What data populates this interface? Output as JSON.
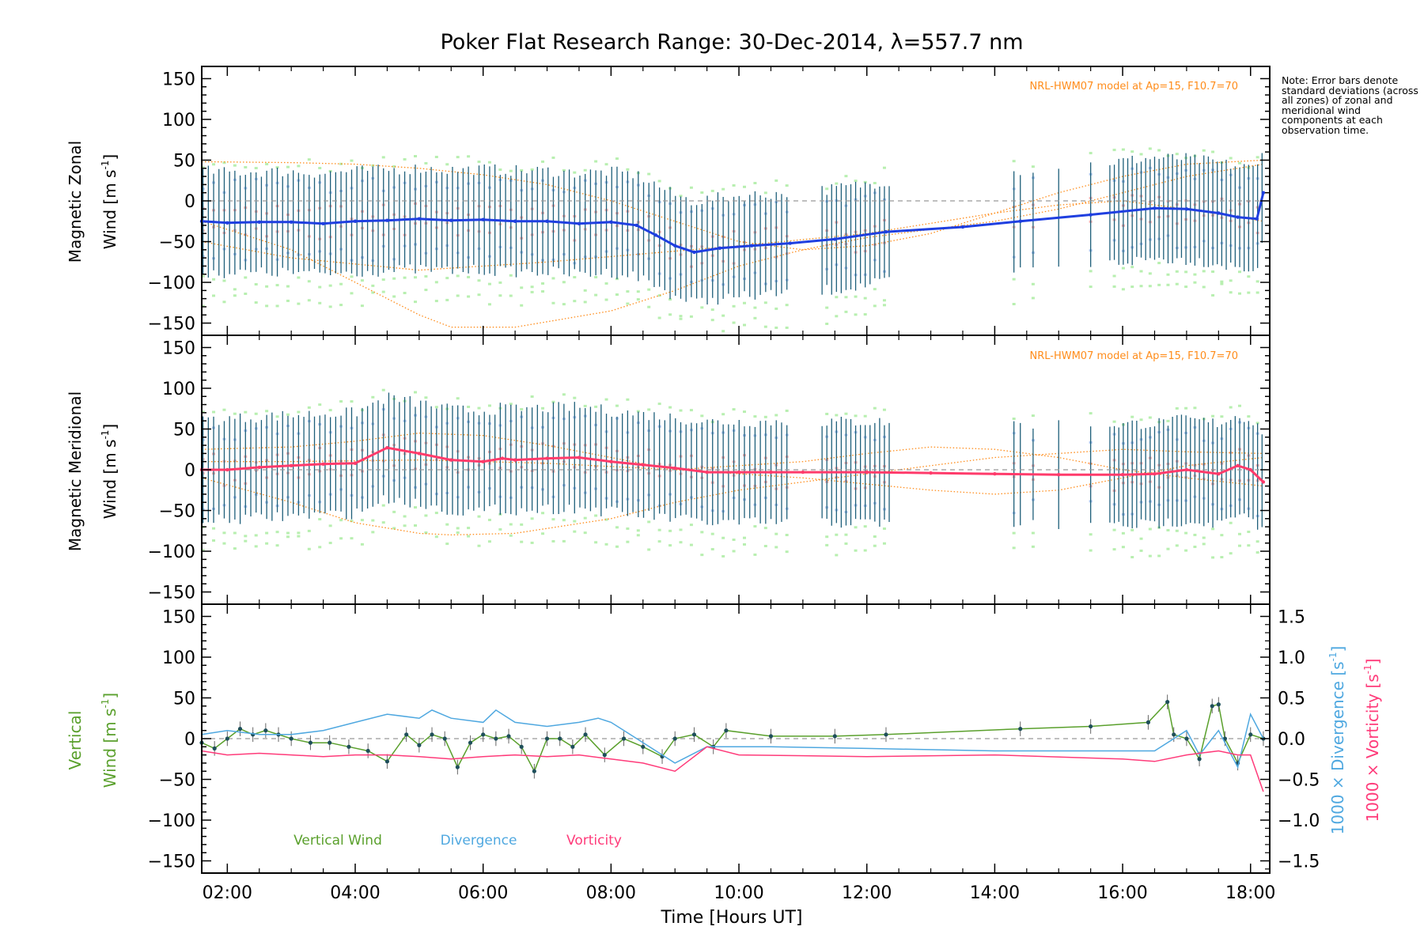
{
  "figure": {
    "title": "Poker Flat Research Range: 30-Dec-2014, λ=557.7 nm",
    "xlabel": "Time [Hours UT]",
    "note": "Note: Error bars denote standard deviations (across all zones) of zonal and meridional wind components at each observation time.",
    "colors": {
      "zonal": "#1f3fe0",
      "meridional": "#ff3b6b",
      "error_bar": "#1e5f7a",
      "model": "#ff8c1a",
      "zone_green": "#b8efb0",
      "zone_pink": "#f6b4b4",
      "zone_blue": "#b0c8f0",
      "vertical": "#5aa02c",
      "divergence": "#4fa8e0",
      "vorticity": "#ff3b7a",
      "zero_line": "#999999"
    }
  },
  "chart_data": [
    {
      "type": "line",
      "panel": "zonal",
      "ylabel_line1": "Magnetic Zonal",
      "ylabel_line2": "Wind [m s",
      "ylabel_sup": "-1",
      "ylabel_end": "]",
      "annotation": "NRL-HWM07 model at Ap=15, F10.7=70",
      "ylim": [
        -165,
        165
      ],
      "yticks": [
        150,
        100,
        50,
        0,
        -50,
        -100,
        -150
      ],
      "series": [
        {
          "x": [
            1.6,
            2.0,
            2.5,
            3.0,
            3.5,
            4.0,
            4.5,
            5.0,
            5.5,
            6.0,
            6.5,
            7.0,
            7.5,
            8.0,
            8.4,
            8.7,
            9.0,
            9.3,
            9.7,
            10.2,
            10.8,
            11.5,
            12.3,
            13.5,
            14.4,
            15.5,
            16.5,
            17.0,
            17.5,
            17.8,
            18.1,
            18.2
          ],
          "y": [
            -25,
            -27,
            -26,
            -26,
            -28,
            -25,
            -24,
            -22,
            -24,
            -23,
            -25,
            -25,
            -28,
            -26,
            -30,
            -42,
            -55,
            -63,
            -58,
            -55,
            -52,
            -47,
            -38,
            -32,
            -25,
            -17,
            -9,
            -10,
            -15,
            -20,
            -22,
            10
          ]
        }
      ],
      "model_curves": [
        {
          "x": [
            1.6,
            3,
            4,
            5,
            5.5,
            6.5,
            8,
            9,
            10,
            11,
            12,
            13,
            14,
            15,
            16,
            17,
            18.2
          ],
          "y": [
            -25,
            -60,
            -100,
            -140,
            -155,
            -155,
            -135,
            -110,
            -80,
            -60,
            -45,
            -35,
            -25,
            -10,
            10,
            30,
            45
          ]
        },
        {
          "x": [
            1.6,
            3,
            4,
            5,
            6,
            7,
            8,
            9,
            10,
            11,
            12,
            13,
            14,
            15,
            16,
            17,
            18.2
          ],
          "y": [
            48,
            47,
            45,
            40,
            32,
            20,
            0,
            -25,
            -50,
            -60,
            -55,
            -40,
            -15,
            10,
            30,
            45,
            50
          ]
        },
        {
          "x": [
            1.6,
            3,
            5,
            7,
            8.5,
            10,
            12,
            14,
            15,
            16,
            17,
            18.2
          ],
          "y": [
            -50,
            -70,
            -85,
            -75,
            -65,
            -55,
            -40,
            -15,
            -5,
            0,
            -10,
            -25
          ]
        }
      ]
    },
    {
      "type": "line",
      "panel": "meridional",
      "ylabel_line1": "Magnetic Meridional",
      "ylabel_line2": "Wind [m s",
      "ylabel_sup": "-1",
      "ylabel_end": "]",
      "annotation": "NRL-HWM07 model at Ap=15, F10.7=70",
      "ylim": [
        -165,
        165
      ],
      "yticks": [
        150,
        100,
        50,
        0,
        -50,
        -100,
        -150
      ],
      "series": [
        {
          "x": [
            1.6,
            2.0,
            2.5,
            3.0,
            3.5,
            4.0,
            4.5,
            5.0,
            5.5,
            6.0,
            6.3,
            6.5,
            7.0,
            7.5,
            8.0,
            8.5,
            9.0,
            9.5,
            10.0,
            10.5,
            11.0,
            12.0,
            13.0,
            14.0,
            15.0,
            16.0,
            16.5,
            17.0,
            17.5,
            17.8,
            18.0,
            18.2
          ],
          "y": [
            0,
            0,
            3,
            5,
            7,
            8,
            27,
            20,
            12,
            10,
            14,
            12,
            14,
            15,
            10,
            6,
            2,
            -3,
            -3,
            -3,
            -3,
            -3,
            -4,
            -5,
            -6,
            -6,
            -5,
            0,
            -5,
            5,
            0,
            -15
          ]
        }
      ],
      "model_curves": [
        {
          "x": [
            1.6,
            3,
            4,
            5,
            5.5,
            6.5,
            8,
            9,
            10,
            11,
            12,
            13,
            14,
            15,
            16,
            17,
            18.2
          ],
          "y": [
            -10,
            -40,
            -65,
            -78,
            -80,
            -78,
            -60,
            -40,
            -25,
            -15,
            -5,
            5,
            15,
            20,
            25,
            22,
            20
          ]
        },
        {
          "x": [
            1.6,
            3,
            4,
            5,
            6,
            7,
            8,
            9,
            10,
            11,
            12,
            13,
            14,
            15,
            16,
            17,
            18.2
          ],
          "y": [
            25,
            28,
            35,
            45,
            42,
            30,
            15,
            0,
            5,
            10,
            20,
            28,
            25,
            15,
            0,
            -10,
            -20
          ]
        },
        {
          "x": [
            1.6,
            3,
            5,
            7,
            9,
            11,
            13,
            14,
            15,
            16,
            17,
            18.2
          ],
          "y": [
            10,
            10,
            12,
            8,
            0,
            -10,
            -25,
            -30,
            -25,
            -10,
            5,
            15
          ]
        }
      ]
    },
    {
      "type": "line",
      "panel": "vertical",
      "ylabel_left_1": "Vertical",
      "ylabel_left_2": "Wind [m s",
      "ylabel_sup": "-1",
      "ylabel_end": "]",
      "ylabel_right_div": "1000 × Divergence [s",
      "ylabel_right_vor": "1000 × Vorticity [s",
      "ylim": [
        -165,
        165
      ],
      "yticks": [
        150,
        100,
        50,
        0,
        -50,
        -100,
        -150
      ],
      "y2lim": [
        -1.65,
        1.65
      ],
      "y2ticks": [
        1.5,
        1.0,
        0.5,
        0.0,
        -0.5,
        -1.0,
        -1.5
      ],
      "y2tick_labels": [
        "1.5",
        "1.0",
        "0.5",
        "0.0",
        "−0.5",
        "−1.0",
        "−1.5"
      ],
      "legend": [
        "Vertical Wind",
        "Divergence",
        "Vorticity"
      ],
      "series": [
        {
          "name": "Vertical Wind",
          "x": [
            1.6,
            1.8,
            2.0,
            2.2,
            2.4,
            2.6,
            2.8,
            3.0,
            3.3,
            3.6,
            3.9,
            4.2,
            4.5,
            4.8,
            5.0,
            5.2,
            5.4,
            5.6,
            5.8,
            6.0,
            6.2,
            6.4,
            6.6,
            6.8,
            7.0,
            7.2,
            7.4,
            7.6,
            7.9,
            8.2,
            8.5,
            8.8,
            9.0,
            9.3,
            9.6,
            9.8,
            10.5,
            11.5,
            12.3,
            14.4,
            15.5,
            16.4,
            16.7,
            16.8,
            17.0,
            17.2,
            17.4,
            17.5,
            17.6,
            17.8,
            18.0,
            18.2
          ],
          "y": [
            -5,
            -12,
            0,
            12,
            5,
            10,
            5,
            0,
            -5,
            -5,
            -10,
            -15,
            -28,
            5,
            -8,
            5,
            0,
            -35,
            -5,
            5,
            0,
            3,
            -10,
            -40,
            0,
            0,
            -10,
            5,
            -20,
            0,
            -10,
            -22,
            0,
            5,
            -10,
            10,
            3,
            3,
            5,
            12,
            15,
            20,
            45,
            5,
            0,
            -25,
            40,
            42,
            0,
            -30,
            5,
            0
          ]
        },
        {
          "name": "Divergence",
          "axis": "right",
          "x": [
            1.6,
            2.0,
            2.5,
            3.0,
            3.5,
            4.0,
            4.5,
            5.0,
            5.2,
            5.5,
            6.0,
            6.2,
            6.5,
            7.0,
            7.5,
            7.8,
            8.0,
            8.3,
            8.6,
            9.0,
            9.5,
            9.8,
            10.5,
            12,
            14,
            16,
            16.5,
            17.0,
            17.2,
            17.5,
            17.8,
            18.0,
            18.2
          ],
          "y": [
            0.05,
            0.1,
            0.05,
            0.05,
            0.1,
            0.2,
            0.3,
            0.25,
            0.35,
            0.25,
            0.2,
            0.35,
            0.2,
            0.15,
            0.2,
            0.25,
            0.2,
            0.05,
            -0.1,
            -0.3,
            -0.1,
            -0.1,
            -0.1,
            -0.12,
            -0.15,
            -0.15,
            -0.15,
            0.1,
            -0.2,
            0.1,
            -0.35,
            0.3,
            0.0
          ]
        },
        {
          "name": "Vorticity",
          "axis": "right",
          "x": [
            1.6,
            2.0,
            2.5,
            3.0,
            3.5,
            4.0,
            4.5,
            5.0,
            5.5,
            6.0,
            6.5,
            7.0,
            7.5,
            8.0,
            8.5,
            9.0,
            9.5,
            10.0,
            12.0,
            14.0,
            16.0,
            16.5,
            17.0,
            17.5,
            17.8,
            18.0,
            18.2
          ],
          "y": [
            -0.15,
            -0.2,
            -0.18,
            -0.2,
            -0.22,
            -0.2,
            -0.2,
            -0.22,
            -0.25,
            -0.22,
            -0.2,
            -0.22,
            -0.2,
            -0.25,
            -0.3,
            -0.4,
            -0.1,
            -0.2,
            -0.22,
            -0.2,
            -0.25,
            -0.28,
            -0.2,
            -0.15,
            -0.2,
            -0.2,
            -0.65
          ]
        }
      ]
    }
  ],
  "xaxis": {
    "xlim": [
      1.6,
      18.3
    ],
    "ticks": [
      2,
      4,
      6,
      8,
      10,
      12,
      14,
      16,
      18
    ],
    "tick_labels": [
      "02:00",
      "04:00",
      "06:00",
      "08:00",
      "10:00",
      "12:00",
      "14:00",
      "16:00",
      "18:00"
    ]
  }
}
